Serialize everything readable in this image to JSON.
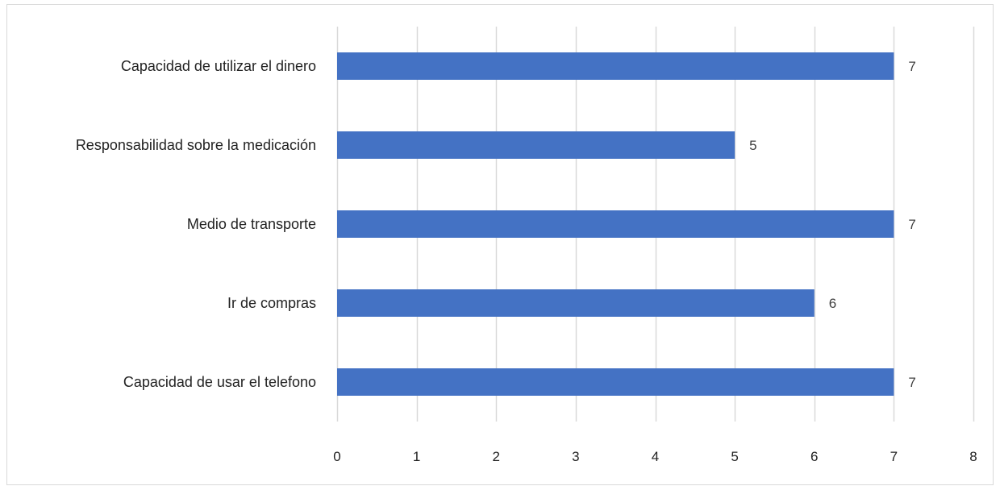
{
  "chart_data": {
    "type": "bar",
    "orientation": "horizontal",
    "title": "",
    "xlabel": "",
    "ylabel": "",
    "categories": [
      "Capacidad de utilizar el dinero",
      "Responsabilidad sobre la medicación",
      "Medio de transporte",
      "Ir de compras",
      "Capacidad de usar el telefono"
    ],
    "values": [
      7,
      5,
      7,
      6,
      7
    ],
    "xlim": [
      0,
      8
    ],
    "x_ticks": [
      "0",
      "1",
      "2",
      "3",
      "4",
      "5",
      "6",
      "7",
      "8"
    ],
    "grid": "vertical",
    "legend": "none",
    "data_labels": true,
    "colors": {
      "bar": "#4472C4",
      "grid": "#D9D9D9",
      "frame": "#D9D9D9"
    }
  }
}
